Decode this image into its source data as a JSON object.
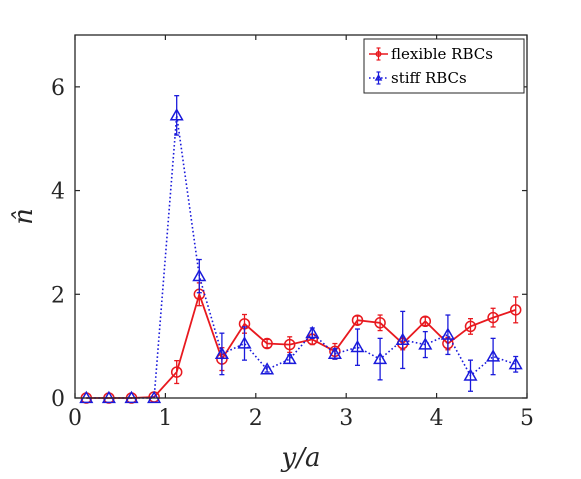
{
  "chart_data": {
    "type": "line",
    "title": "",
    "xlabel": "y/a",
    "ylabel": "n̂",
    "xlim": [
      0,
      5
    ],
    "ylim": [
      0,
      7
    ],
    "xticks": [
      0,
      1,
      2,
      3,
      4,
      5
    ],
    "yticks": [
      0,
      2,
      4,
      6
    ],
    "grid": false,
    "legend_position": "top-right",
    "series": [
      {
        "name": "flexible RBCs",
        "color": "#e8191f",
        "line_style": "solid",
        "marker": "circle",
        "x": [
          0.125,
          0.375,
          0.625,
          0.875,
          1.125,
          1.375,
          1.625,
          1.875,
          2.125,
          2.375,
          2.625,
          2.875,
          3.125,
          3.375,
          3.625,
          3.875,
          4.125,
          4.375,
          4.625,
          4.875
        ],
        "y": [
          0,
          0,
          0,
          0.02,
          0.5,
          2.0,
          0.75,
          1.43,
          1.05,
          1.03,
          1.13,
          0.9,
          1.5,
          1.45,
          1.05,
          1.48,
          1.05,
          1.38,
          1.55,
          1.7
        ],
        "err": [
          0,
          0,
          0,
          0.02,
          0.22,
          0.22,
          0.22,
          0.18,
          0.08,
          0.15,
          0.1,
          0.15,
          0.08,
          0.15,
          0.12,
          0.08,
          0.12,
          0.15,
          0.18,
          0.25
        ]
      },
      {
        "name": "stiff RBCs",
        "color": "#1a1adb",
        "line_style": "dotted",
        "marker": "triangle",
        "x": [
          0.125,
          0.375,
          0.625,
          0.875,
          1.125,
          1.375,
          1.625,
          1.875,
          2.125,
          2.375,
          2.625,
          2.875,
          3.125,
          3.375,
          3.625,
          3.875,
          4.125,
          4.375,
          4.625,
          4.875
        ],
        "y": [
          0,
          0,
          0,
          0,
          5.45,
          2.35,
          0.85,
          1.05,
          0.55,
          0.75,
          1.25,
          0.85,
          0.98,
          0.75,
          1.12,
          1.03,
          1.22,
          0.43,
          0.8,
          0.65
        ],
        "err": [
          0,
          0,
          0,
          0.02,
          0.38,
          0.32,
          0.4,
          0.32,
          0.05,
          0.08,
          0.1,
          0.1,
          0.35,
          0.4,
          0.55,
          0.25,
          0.38,
          0.3,
          0.35,
          0.15
        ]
      }
    ]
  }
}
